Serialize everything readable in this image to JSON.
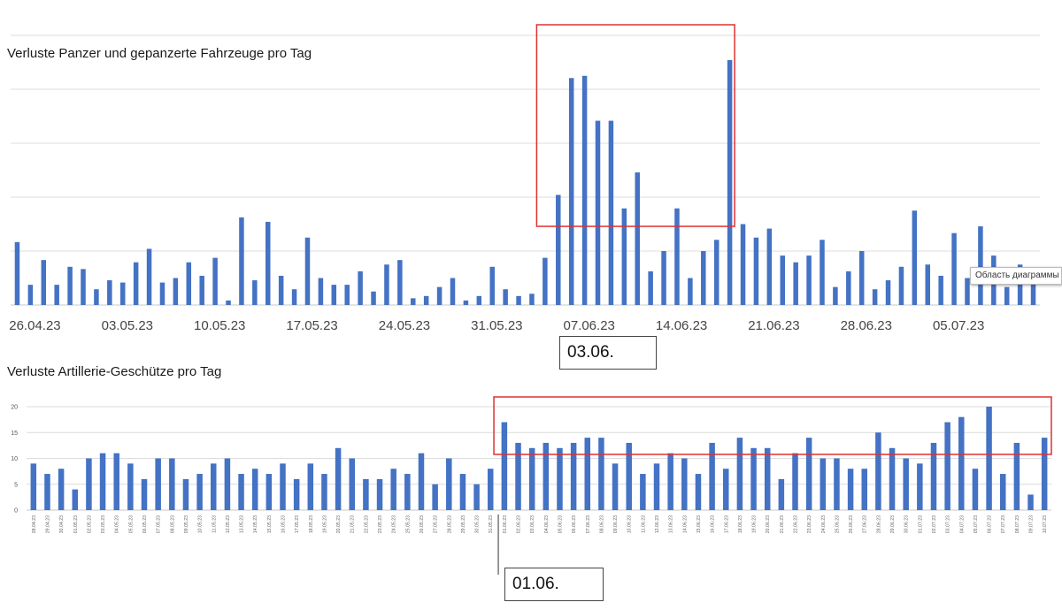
{
  "chart_data": [
    {
      "type": "bar",
      "title": "Verluste Panzer und gepanzerte Fahrzeuge pro Tag",
      "color": "#4472C4",
      "ylim": [
        0,
        60
      ],
      "grid": true,
      "x_tick_labels": [
        "26.04.23",
        "03.05.23",
        "10.05.23",
        "17.05.23",
        "24.05.23",
        "31.05.23",
        "07.06.23",
        "14.06.23",
        "21.06.23",
        "28.06.23",
        "05.07.23"
      ],
      "x_tick_every": 7,
      "values": [
        14,
        4.5,
        10,
        4.5,
        8.5,
        8,
        3.5,
        5.5,
        5,
        9.5,
        12.5,
        5,
        6,
        9.5,
        6.5,
        10.5,
        1,
        19.5,
        5.5,
        18.5,
        6.5,
        3.5,
        15,
        6,
        4.5,
        4.5,
        7.5,
        3,
        9,
        10,
        1.5,
        2,
        4,
        6,
        1,
        2,
        8.5,
        3.5,
        2,
        2.5,
        10.5,
        24.5,
        50.5,
        51,
        41,
        41,
        21.5,
        29.5,
        7.5,
        12,
        21.5,
        6,
        12,
        14.5,
        54.5,
        18,
        15,
        17,
        11,
        9.5,
        11,
        14.5,
        4,
        7.5,
        12,
        3.5,
        5.5,
        8.5,
        21,
        9,
        6.5,
        16,
        6,
        17.5,
        11,
        4,
        9,
        8
      ]
    },
    {
      "type": "bar",
      "title": "Verluste Artillerie-Geschütze pro Tag",
      "color": "#4472C4",
      "ylim": [
        0,
        20
      ],
      "grid": true,
      "y_ticks": [
        0,
        5,
        10,
        15,
        20
      ],
      "categories": [
        "28.04.23",
        "29.04.23",
        "30.04.23",
        "01.05.23",
        "02.05.23",
        "03.05.23",
        "04.05.23",
        "05.05.23",
        "06.05.23",
        "07.05.23",
        "08.05.23",
        "09.05.23",
        "10.05.23",
        "11.05.23",
        "12.05.23",
        "13.05.23",
        "14.05.23",
        "15.05.23",
        "16.05.23",
        "17.05.23",
        "18.05.23",
        "19.05.23",
        "20.05.23",
        "21.05.23",
        "22.05.23",
        "23.05.23",
        "24.05.23",
        "25.05.23",
        "26.05.23",
        "27.05.23",
        "28.05.23",
        "29.05.23",
        "30.05.23",
        "31.05.23",
        "01.06.23",
        "02.06.23",
        "03.06.23",
        "04.06.23",
        "05.06.23",
        "06.06.23",
        "07.06.23",
        "08.06.23",
        "09.06.23",
        "10.06.23",
        "11.06.23",
        "12.06.23",
        "13.06.23",
        "14.06.23",
        "15.06.23",
        "16.06.23",
        "17.06.23",
        "18.06.23",
        "19.06.23",
        "20.06.23",
        "21.06.23",
        "22.06.23",
        "23.06.23",
        "24.06.23",
        "25.06.23",
        "26.06.23",
        "27.06.23",
        "28.06.23",
        "29.06.23",
        "30.06.23",
        "01.07.23",
        "02.07.23",
        "03.07.23",
        "04.07.23",
        "05.07.23",
        "06.07.23",
        "07.07.23",
        "08.07.23",
        "09.07.23",
        "10.07.23"
      ],
      "values": [
        9,
        7,
        8,
        4,
        10,
        11,
        11,
        9,
        6,
        10,
        10,
        6,
        7,
        9,
        10,
        7,
        8,
        7,
        9,
        6,
        9,
        7,
        12,
        10,
        6,
        6,
        8,
        7,
        11,
        5,
        10,
        7,
        5,
        8,
        17,
        13,
        12,
        13,
        12,
        13,
        14,
        14,
        9,
        13,
        7,
        9,
        11,
        10,
        7,
        13,
        8,
        14,
        12,
        12,
        6,
        11,
        14,
        10,
        10,
        8,
        8,
        15,
        12,
        10,
        9,
        13,
        17,
        18,
        8,
        20,
        7,
        13,
        3,
        14
      ]
    }
  ],
  "callouts": {
    "chart1": "03.06.",
    "chart2": "01.06."
  },
  "tooltip": "Область диаграммы",
  "annotation_color": "#E03030"
}
